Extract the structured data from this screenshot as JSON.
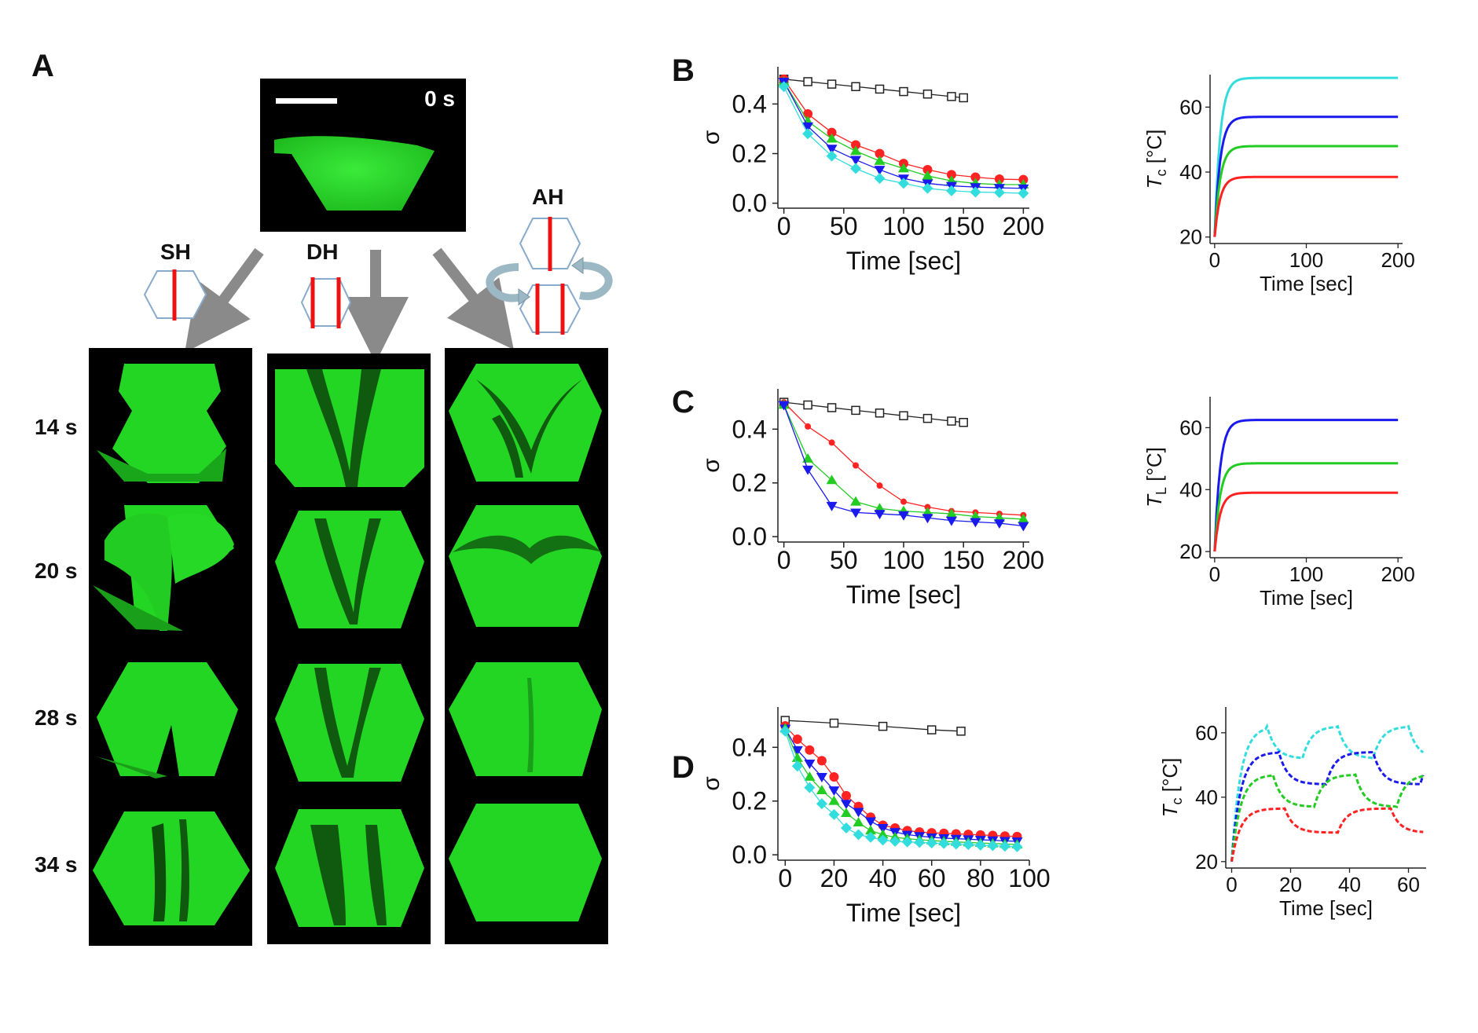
{
  "panels": {
    "A": {
      "label": "A",
      "initial_time": "0 s",
      "configs": [
        {
          "key": "SH",
          "label": "SH"
        },
        {
          "key": "DH",
          "label": "DH"
        },
        {
          "key": "AH",
          "label": "AH"
        }
      ],
      "times": [
        "14 s",
        "20 s",
        "28 s",
        "34 s"
      ],
      "colors": {
        "fluid": "#22dd22",
        "background": "#000000",
        "heater": "#ee1111",
        "arrow": "#888888",
        "cell_outline": "#88aacc",
        "rotation": "#9bb8c4"
      }
    },
    "B": {
      "label": "B"
    },
    "C": {
      "label": "C"
    },
    "D": {
      "label": "D"
    }
  },
  "chart_data": [
    {
      "panel": "B",
      "type": "line",
      "xlabel": "Time [sec]",
      "ylabel": "σ",
      "xlim": [
        -5,
        205
      ],
      "ylim": [
        -0.02,
        0.55
      ],
      "xticks": [
        0,
        50,
        100,
        150,
        200
      ],
      "yticks": [
        0.0,
        0.2,
        0.4
      ],
      "series": [
        {
          "color": "#222222",
          "marker": "square-open",
          "x": [
            0,
            20,
            40,
            60,
            80,
            100,
            120,
            140,
            150
          ],
          "y": [
            0.5,
            0.49,
            0.48,
            0.47,
            0.46,
            0.45,
            0.44,
            0.43,
            0.425
          ]
        },
        {
          "color": "#ff2222",
          "marker": "circle",
          "x": [
            0,
            20,
            40,
            60,
            80,
            100,
            120,
            140,
            160,
            180,
            200
          ],
          "y": [
            0.5,
            0.36,
            0.285,
            0.235,
            0.2,
            0.16,
            0.135,
            0.115,
            0.105,
            0.097,
            0.095
          ]
        },
        {
          "color": "#22cc22",
          "marker": "triangle-up",
          "x": [
            0,
            20,
            40,
            60,
            80,
            100,
            120,
            140,
            160,
            180,
            200
          ],
          "y": [
            0.49,
            0.33,
            0.26,
            0.21,
            0.17,
            0.14,
            0.11,
            0.09,
            0.08,
            0.075,
            0.075
          ]
        },
        {
          "color": "#1a1aee",
          "marker": "triangle-down",
          "x": [
            0,
            20,
            40,
            60,
            80,
            100,
            120,
            140,
            160,
            180,
            200
          ],
          "y": [
            0.49,
            0.31,
            0.22,
            0.175,
            0.135,
            0.1,
            0.08,
            0.07,
            0.065,
            0.062,
            0.06
          ]
        },
        {
          "color": "#33dddd",
          "marker": "diamond",
          "x": [
            0,
            20,
            40,
            60,
            80,
            100,
            120,
            140,
            160,
            180,
            200
          ],
          "y": [
            0.47,
            0.28,
            0.19,
            0.14,
            0.1,
            0.08,
            0.06,
            0.05,
            0.045,
            0.043,
            0.04
          ]
        }
      ],
      "inset": {
        "ylabel": "Tc [°C]",
        "ylabel_main": "T",
        "ylabel_sub": "c",
        "ylabel_unit": " [°C]",
        "xlabel": "Time [sec]",
        "xlim": [
          -5,
          205
        ],
        "ylim": [
          18,
          70
        ],
        "xticks": [
          0,
          100,
          200
        ],
        "yticks": [
          20,
          40,
          60
        ],
        "series": [
          {
            "color": "#33dddd",
            "final": 69,
            "tau": 6
          },
          {
            "color": "#1a1aee",
            "final": 57,
            "tau": 6
          },
          {
            "color": "#22cc22",
            "final": 48,
            "tau": 6
          },
          {
            "color": "#ff2222",
            "final": 38.5,
            "tau": 6
          }
        ]
      }
    },
    {
      "panel": "C",
      "type": "line",
      "xlabel": "Time [sec]",
      "ylabel": "σ",
      "xlim": [
        -5,
        205
      ],
      "ylim": [
        -0.02,
        0.55
      ],
      "xticks": [
        0,
        50,
        100,
        150,
        200
      ],
      "yticks": [
        0.0,
        0.2,
        0.4
      ],
      "series": [
        {
          "color": "#222222",
          "marker": "square-open",
          "x": [
            0,
            20,
            40,
            60,
            80,
            100,
            120,
            140,
            150
          ],
          "y": [
            0.5,
            0.49,
            0.48,
            0.47,
            0.46,
            0.45,
            0.44,
            0.43,
            0.425
          ]
        },
        {
          "color": "#ff2222",
          "marker": "circle-small",
          "x": [
            0,
            20,
            40,
            60,
            80,
            100,
            120,
            140,
            160,
            180,
            200
          ],
          "y": [
            0.5,
            0.41,
            0.35,
            0.265,
            0.19,
            0.13,
            0.11,
            0.095,
            0.09,
            0.085,
            0.08
          ]
        },
        {
          "color": "#22cc22",
          "marker": "triangle-up",
          "x": [
            0,
            20,
            40,
            60,
            80,
            100,
            120,
            140,
            160,
            180,
            200
          ],
          "y": [
            0.49,
            0.29,
            0.21,
            0.13,
            0.105,
            0.095,
            0.09,
            0.085,
            0.075,
            0.07,
            0.065
          ]
        },
        {
          "color": "#1a1aee",
          "marker": "triangle-down",
          "x": [
            0,
            20,
            40,
            60,
            80,
            100,
            120,
            140,
            160,
            180,
            200
          ],
          "y": [
            0.49,
            0.25,
            0.115,
            0.09,
            0.085,
            0.08,
            0.07,
            0.06,
            0.055,
            0.05,
            0.04
          ]
        }
      ],
      "inset": {
        "ylabel": "TL [°C]",
        "ylabel_main": "T",
        "ylabel_sub": "L",
        "ylabel_unit": " [°C]",
        "xlabel": "Time [sec]",
        "xlim": [
          -5,
          205
        ],
        "ylim": [
          18,
          70
        ],
        "xticks": [
          0,
          100,
          200
        ],
        "yticks": [
          20,
          40,
          60
        ],
        "series": [
          {
            "color": "#1a1aee",
            "final": 62.5,
            "tau": 6
          },
          {
            "color": "#22cc22",
            "final": 48.5,
            "tau": 6
          },
          {
            "color": "#ff2222",
            "final": 39,
            "tau": 6
          }
        ]
      }
    },
    {
      "panel": "D",
      "type": "line",
      "xlabel": "Time [sec]",
      "ylabel": "σ",
      "xlim": [
        -3,
        100
      ],
      "ylim": [
        -0.02,
        0.55
      ],
      "xticks": [
        0,
        20,
        40,
        60,
        80,
        100
      ],
      "yticks": [
        0.0,
        0.2,
        0.4
      ],
      "series": [
        {
          "color": "#222222",
          "marker": "square-open",
          "x": [
            0,
            20,
            40,
            60,
            72
          ],
          "y": [
            0.5,
            0.49,
            0.478,
            0.465,
            0.46
          ]
        },
        {
          "color": "#ff2222",
          "marker": "circle",
          "x": [
            0,
            5,
            10,
            15,
            20,
            25,
            30,
            35,
            40,
            45,
            50,
            55,
            60,
            65,
            70,
            75,
            80,
            85,
            90,
            95
          ],
          "y": [
            0.48,
            0.43,
            0.39,
            0.35,
            0.29,
            0.22,
            0.18,
            0.14,
            0.11,
            0.1,
            0.09,
            0.085,
            0.082,
            0.08,
            0.078,
            0.076,
            0.074,
            0.072,
            0.07,
            0.068
          ]
        },
        {
          "color": "#1a1aee",
          "marker": "triangle-down",
          "x": [
            0,
            5,
            10,
            15,
            20,
            25,
            30,
            35,
            40,
            45,
            50,
            55,
            60,
            65,
            70,
            75,
            80,
            85,
            90,
            95
          ],
          "y": [
            0.47,
            0.39,
            0.34,
            0.29,
            0.24,
            0.19,
            0.16,
            0.125,
            0.1,
            0.085,
            0.075,
            0.07,
            0.065,
            0.062,
            0.06,
            0.058,
            0.056,
            0.054,
            0.052,
            0.05
          ]
        },
        {
          "color": "#22cc22",
          "marker": "triangle-up",
          "x": [
            0,
            5,
            10,
            15,
            20,
            25,
            30,
            35,
            40,
            45,
            50,
            55,
            60,
            65,
            70,
            75,
            80,
            85,
            90,
            95
          ],
          "y": [
            0.47,
            0.36,
            0.29,
            0.24,
            0.2,
            0.155,
            0.12,
            0.09,
            0.075,
            0.065,
            0.06,
            0.056,
            0.053,
            0.05,
            0.048,
            0.046,
            0.044,
            0.042,
            0.04,
            0.038
          ]
        },
        {
          "color": "#33dddd",
          "marker": "diamond",
          "x": [
            0,
            5,
            10,
            15,
            20,
            25,
            30,
            35,
            40,
            45,
            50,
            55,
            60,
            65,
            70,
            75,
            80,
            85,
            90,
            95
          ],
          "y": [
            0.46,
            0.33,
            0.25,
            0.19,
            0.15,
            0.1,
            0.075,
            0.065,
            0.055,
            0.05,
            0.048,
            0.046,
            0.044,
            0.042,
            0.04,
            0.038,
            0.036,
            0.034,
            0.032,
            0.03
          ]
        }
      ],
      "inset": {
        "ylabel": "Tc [°C]",
        "ylabel_main": "T",
        "ylabel_sub": "c",
        "ylabel_unit": " [°C]",
        "xlabel": "Time [sec]",
        "xlim": [
          -2,
          66
        ],
        "ylim": [
          18,
          68
        ],
        "xticks": [
          0,
          20,
          40,
          60
        ],
        "yticks": [
          20,
          40,
          60
        ],
        "series": [
          {
            "color": "#33dddd",
            "base": 43,
            "high": 62,
            "low": 52,
            "period": 12,
            "tau": 3
          },
          {
            "color": "#1a1aee",
            "base": 38,
            "high": 54,
            "low": 44,
            "period": 16,
            "tau": 3
          },
          {
            "color": "#22cc22",
            "base": 32,
            "high": 47,
            "low": 37,
            "period": 14,
            "tau": 3
          },
          {
            "color": "#ff2222",
            "base": 24,
            "high": 36.5,
            "low": 29,
            "period": 18,
            "tau": 3
          }
        ]
      }
    }
  ]
}
